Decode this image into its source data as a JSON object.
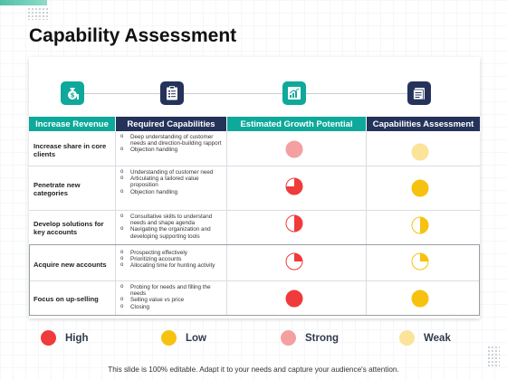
{
  "title": "Capability Assessment",
  "headers": [
    {
      "label": "Increase Revenue",
      "color": "#0ea99a"
    },
    {
      "label": "Required Capabilities",
      "color": "#25335a"
    },
    {
      "label": "Estimated Growth Potential",
      "color": "#0ea99a"
    },
    {
      "label": "Capabilities Assessment",
      "color": "#25335a"
    }
  ],
  "timeline_icons": [
    {
      "name": "money-bag-icon",
      "color": "#0ea99a"
    },
    {
      "name": "clipboard-list-icon",
      "color": "#25335a"
    },
    {
      "name": "growth-chart-icon",
      "color": "#0ea99a"
    },
    {
      "name": "document-stack-icon",
      "color": "#25335a"
    }
  ],
  "rows": [
    {
      "label": "Increase share in core clients",
      "requirements": [
        "Deep understanding of customer needs and direction-building rapport",
        "Objection handling"
      ],
      "growth": {
        "color": "#f4a0a0",
        "fill": 1.0
      },
      "assessment": {
        "color": "#fbe39a",
        "fill": 1.0
      }
    },
    {
      "label": "Penetrate new categories",
      "requirements": [
        "Understanding of customer need",
        "Articulating a tailored value proposition",
        "Objection handling"
      ],
      "growth": {
        "color": "#ef3b3b",
        "fill": 0.75
      },
      "assessment": {
        "color": "#f7c20f",
        "fill": 1.0
      }
    },
    {
      "label": "Develop solutions  for key accounts",
      "requirements": [
        "Consultative skills to understand needs and shape agenda",
        "Navigating the organization and developing supporting tools"
      ],
      "growth": {
        "color": "#ef3b3b",
        "fill": 0.5
      },
      "assessment": {
        "color": "#f7c20f",
        "fill": 0.5
      }
    },
    {
      "label": "Acquire new accounts",
      "requirements": [
        "Prospecting effectively",
        "Prioritizing accounts",
        "Allocating time for hunting activity"
      ],
      "growth": {
        "color": "#ef3b3b",
        "fill": 0.25
      },
      "assessment": {
        "color": "#f7c20f",
        "fill": 0.25
      }
    },
    {
      "label": "Focus  on up-selling",
      "requirements": [
        "Probing for needs and filling the needs",
        "Selling value vs price",
        "Closing"
      ],
      "growth": {
        "color": "#ef3b3b",
        "fill": 1.0
      },
      "assessment": {
        "color": "#f7c20f",
        "fill": 1.0
      }
    }
  ],
  "legend": [
    {
      "label": "High",
      "color": "#ef3b3b"
    },
    {
      "label": "Low",
      "color": "#f7c20f"
    },
    {
      "label": "Strong",
      "color": "#f4a0a0"
    },
    {
      "label": "Weak",
      "color": "#fbe39a"
    }
  ],
  "footer": "This slide is 100% editable. Adapt it to your needs and capture your audience's attention."
}
